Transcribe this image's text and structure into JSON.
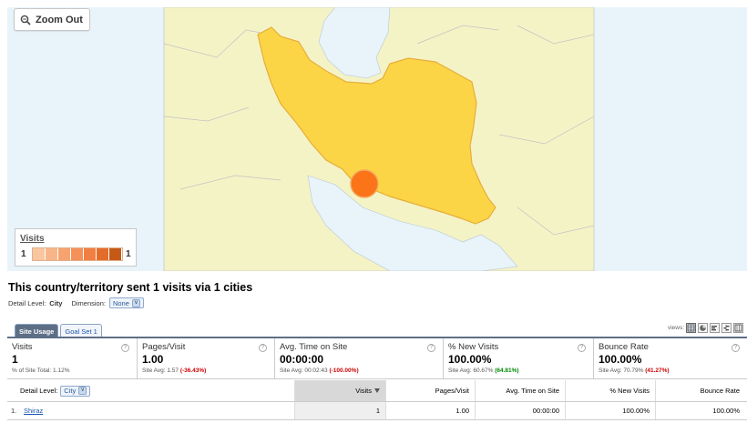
{
  "map": {
    "zoom_label": "Zoom Out",
    "legend": {
      "title": "Visits",
      "min": "1",
      "max": "1"
    },
    "colors": {
      "land_outside": "#f4f3c6",
      "sea": "#e8f3fa",
      "iran_fill": "#fcd547",
      "iran_stroke": "#e7ad3a",
      "bubble": "#fb7417",
      "ramp": [
        "#f9c6a0",
        "#f8b588",
        "#f6a370",
        "#f59058",
        "#f17f42",
        "#e46c2a",
        "#c55a17"
      ]
    }
  },
  "headline": "This country/territory sent 1 visits via 1 cities",
  "detail": {
    "detail_label": "Detail Level:",
    "detail_value": "City",
    "dimension_label": "Dimension:",
    "dimension_value": "None"
  },
  "tabs": [
    {
      "label": "Site Usage",
      "active": true
    },
    {
      "label": "Goal Set 1",
      "active": false
    }
  ],
  "views_label": "views:",
  "summary": [
    {
      "label": "Visits",
      "value": "1",
      "sub_prefix": "% of Site Total: ",
      "sub_value": "1.12%",
      "delta": "",
      "delta_type": ""
    },
    {
      "label": "Pages/Visit",
      "value": "1.00",
      "sub_prefix": "Site Avg: 1.57 ",
      "sub_value": "",
      "delta": "(-36.43%)",
      "delta_type": "neg"
    },
    {
      "label": "Avg. Time on Site",
      "value": "00:00:00",
      "sub_prefix": "Site Avg: 00:02:43 ",
      "sub_value": "",
      "delta": "(-100.00%)",
      "delta_type": "neg"
    },
    {
      "label": "% New Visits",
      "value": "100.00%",
      "sub_prefix": "Site Avg: 60.67% ",
      "sub_value": "",
      "delta": "(64.81%)",
      "delta_type": "pos"
    },
    {
      "label": "Bounce Rate",
      "value": "100.00%",
      "sub_prefix": "Site Avg: 70.79% ",
      "sub_value": "",
      "delta": "(41.27%)",
      "delta_type": "neg"
    }
  ],
  "table": {
    "detail_label": "Detail Level:",
    "detail_value": "City",
    "columns": [
      "Visits",
      "Pages/Visit",
      "Avg. Time on Site",
      "% New Visits",
      "Bounce Rate"
    ],
    "rows": [
      {
        "index": "1.",
        "city": "Shiraz",
        "cells": [
          "1",
          "1.00",
          "00:00:00",
          "100.00%",
          "100.00%"
        ]
      }
    ]
  }
}
